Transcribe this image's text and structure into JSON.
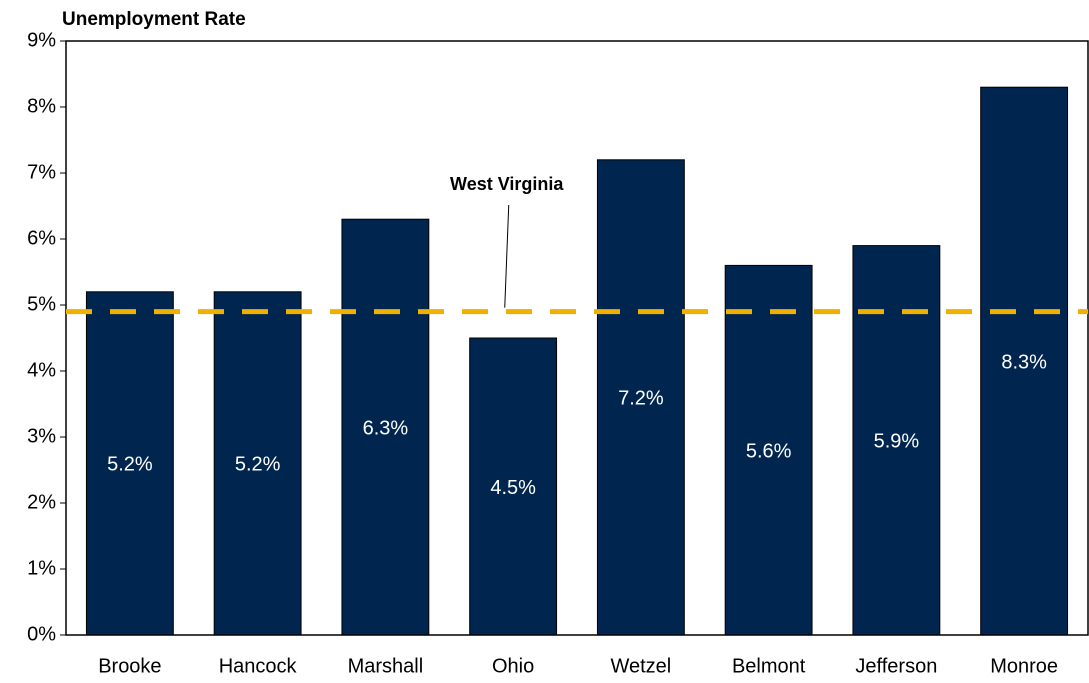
{
  "chart_data": {
    "type": "bar",
    "title": "Unemployment Rate",
    "categories": [
      "Brooke",
      "Hancock",
      "Marshall",
      "Ohio",
      "Wetzel",
      "Belmont",
      "Jefferson",
      "Monroe"
    ],
    "values": [
      5.2,
      5.2,
      6.3,
      4.5,
      7.2,
      5.6,
      5.9,
      8.3
    ],
    "value_labels": [
      "5.2%",
      "5.2%",
      "6.3%",
      "4.5%",
      "7.2%",
      "5.6%",
      "5.9%",
      "8.3%"
    ],
    "color": "#00264f",
    "ylim": [
      0,
      9
    ],
    "yticks": [
      {
        "value": 0,
        "label": "0%"
      },
      {
        "value": 1,
        "label": "1%"
      },
      {
        "value": 2,
        "label": "2%"
      },
      {
        "value": 3,
        "label": "3%"
      },
      {
        "value": 4,
        "label": "4%"
      },
      {
        "value": 5,
        "label": "5%"
      },
      {
        "value": 6,
        "label": "6%"
      },
      {
        "value": 7,
        "label": "7%"
      },
      {
        "value": 8,
        "label": "8%"
      },
      {
        "value": 9,
        "label": "9%"
      }
    ],
    "grid": false,
    "reference_line": {
      "value": 4.9,
      "label": "West Virginia",
      "color": "#f0b000"
    }
  }
}
